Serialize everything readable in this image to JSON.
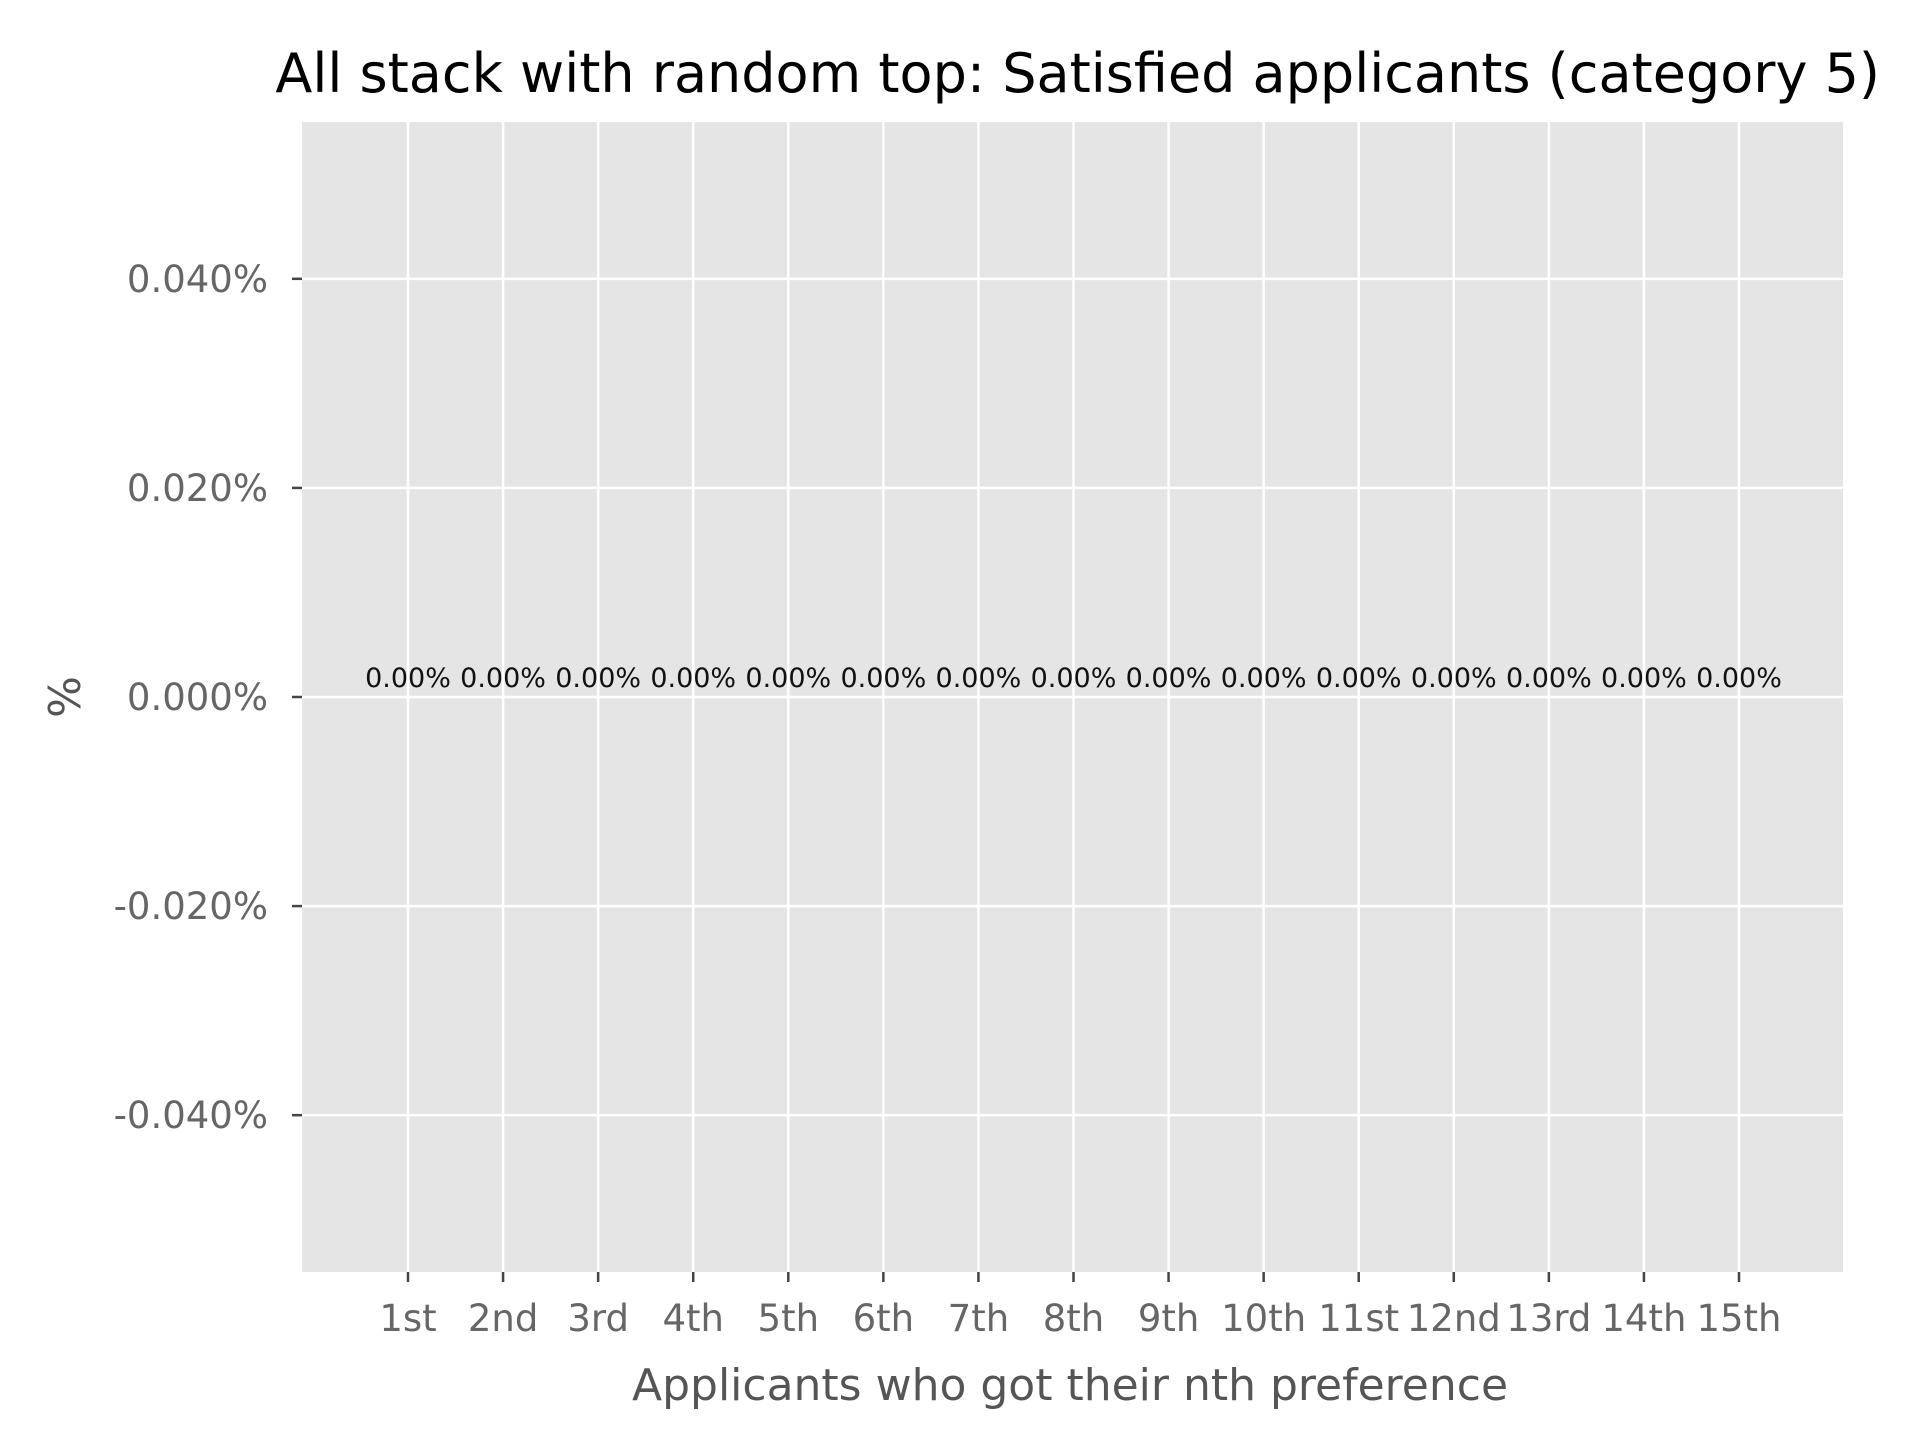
{
  "chart_data": {
    "type": "bar",
    "title": "All stack with random top: Satisfied applicants (category 5)",
    "xlabel": "Applicants who got their nth preference",
    "ylabel": "%",
    "categories": [
      "1st",
      "2nd",
      "3rd",
      "4th",
      "5th",
      "6th",
      "7th",
      "8th",
      "9th",
      "10th",
      "11st",
      "12nd",
      "13rd",
      "14th",
      "15th"
    ],
    "values": [
      0,
      0,
      0,
      0,
      0,
      0,
      0,
      0,
      0,
      0,
      0,
      0,
      0,
      0,
      0
    ],
    "data_labels": [
      "0.00%",
      "0.00%",
      "0.00%",
      "0.00%",
      "0.00%",
      "0.00%",
      "0.00%",
      "0.00%",
      "0.00%",
      "0.00%",
      "0.00%",
      "0.00%",
      "0.00%",
      "0.00%",
      "0.00%"
    ],
    "y_ticks": [
      0.04,
      0.02,
      0.0,
      -0.02,
      -0.04
    ],
    "y_tick_labels": [
      "0.040%",
      "0.020%",
      "0.000%",
      "-0.020%",
      "-0.040%"
    ],
    "ylim": [
      -0.055,
      0.055
    ],
    "grid": true,
    "legend": "none",
    "colors": {
      "panel": "#e5e5e5",
      "grid": "#ffffff",
      "text": "#000000",
      "axis_text": "#666666"
    }
  }
}
